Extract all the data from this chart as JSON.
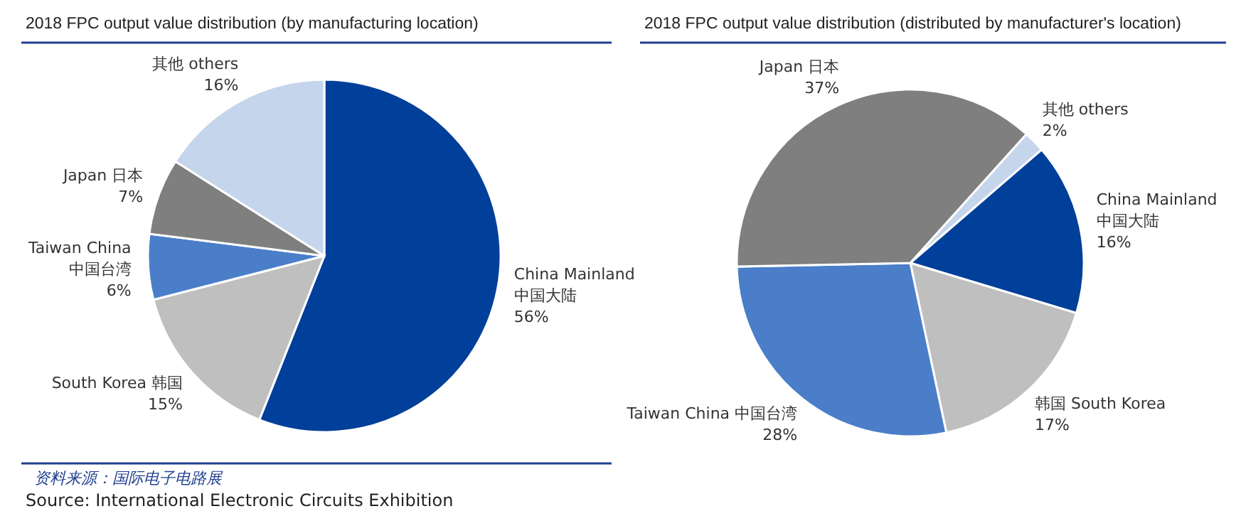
{
  "chart_data": [
    {
      "type": "pie",
      "title": "2018 FPC output value distribution (by manufacturing location)",
      "categories": [
        "China Mainland\n中国大陆",
        "South Korea 韩国",
        "Taiwan China\n中国台湾",
        "Japan 日本",
        "其他 others"
      ],
      "values": [
        56,
        15,
        6,
        7,
        16
      ],
      "value_labels": [
        "56%",
        "15%",
        "6%",
        "7%",
        "16%"
      ],
      "colors": [
        "#003f9a",
        "#bfbfbf",
        "#4a7ec9",
        "#7f7f7f",
        "#c5d5ec"
      ],
      "annotations": [
        "资料来源：国际电子电路展",
        "Source: International Electronic Circuits Exhibition"
      ]
    },
    {
      "type": "pie",
      "title": "2018 FPC output value distribution (distributed by manufacturer's location)",
      "categories": [
        "其他 others",
        "China Mainland\n中国大陆",
        "韩国 South Korea",
        "Taiwan China 中国台湾",
        "Japan 日本"
      ],
      "values": [
        2,
        16,
        17,
        28,
        37
      ],
      "value_labels": [
        "2%",
        "16%",
        "17%",
        "28%",
        "37%"
      ],
      "colors": [
        "#c5d5ec",
        "#003f9a",
        "#bfbfbf",
        "#4a7ec9",
        "#7f7f7f"
      ]
    }
  ]
}
